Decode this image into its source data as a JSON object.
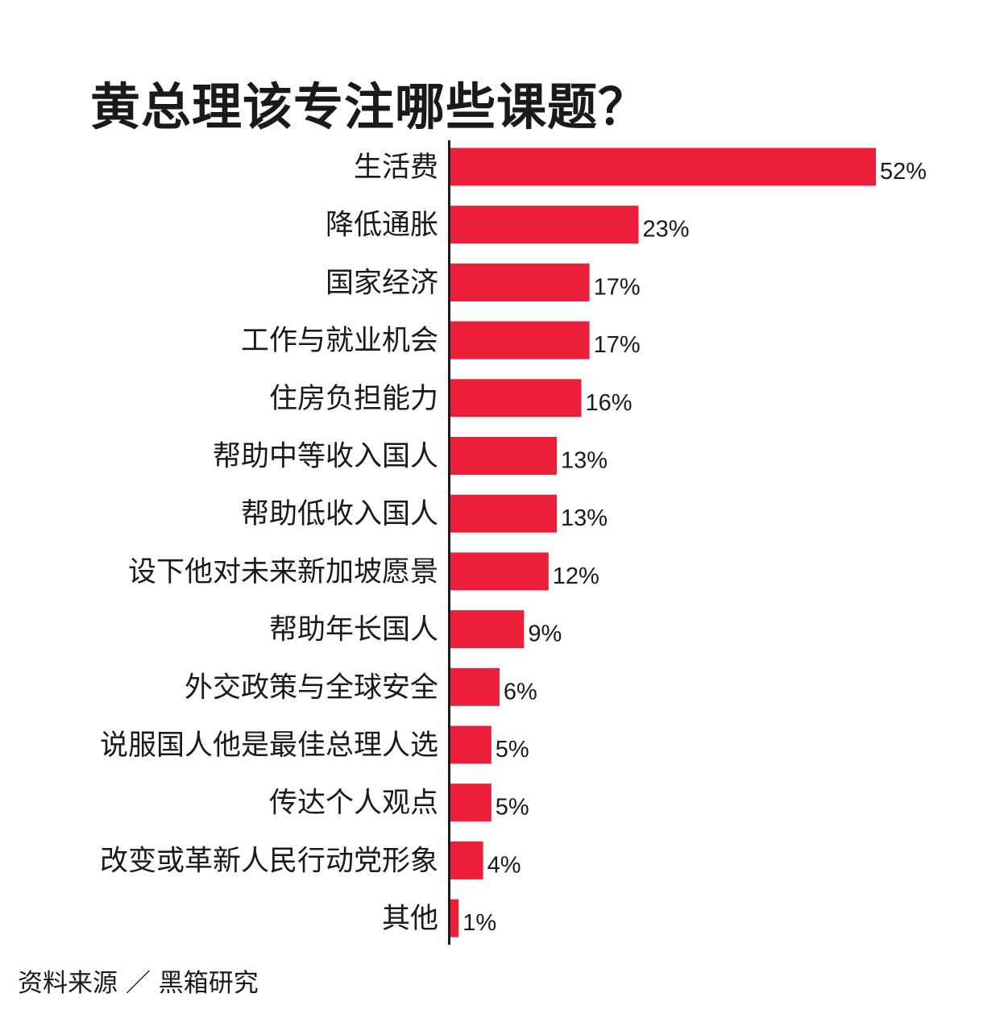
{
  "title": "黄总理该专注哪些课题？",
  "source": "资料来源 ／ 黑箱研究",
  "colors": {
    "bar": "#ec1e3a",
    "axis": "#1a1a1a"
  },
  "chart_data": {
    "type": "bar",
    "orientation": "horizontal",
    "title": "黄总理该专注哪些课题？",
    "xlim": [
      0,
      52
    ],
    "grid": false,
    "categories": [
      "生活费",
      "降低通胀",
      "国家经济",
      "工作与就业机会",
      "住房负担能力",
      "帮助中等收入国人",
      "帮助低收入国人",
      "设下他对未来新加坡愿景",
      "帮助年长国人",
      "外交政策与全球安全",
      "说服国人他是最佳总理人选",
      "传达个人观点",
      "改变或革新人民行动党形象",
      "其他"
    ],
    "values": [
      52,
      23,
      17,
      17,
      16,
      13,
      13,
      12,
      9,
      6,
      5,
      5,
      4,
      1
    ],
    "value_labels": [
      "52%",
      "23%",
      "17%",
      "17%",
      "16%",
      "13%",
      "13%",
      "12%",
      "9%",
      "6%",
      "5%",
      "5%",
      "4%",
      "1%"
    ]
  }
}
